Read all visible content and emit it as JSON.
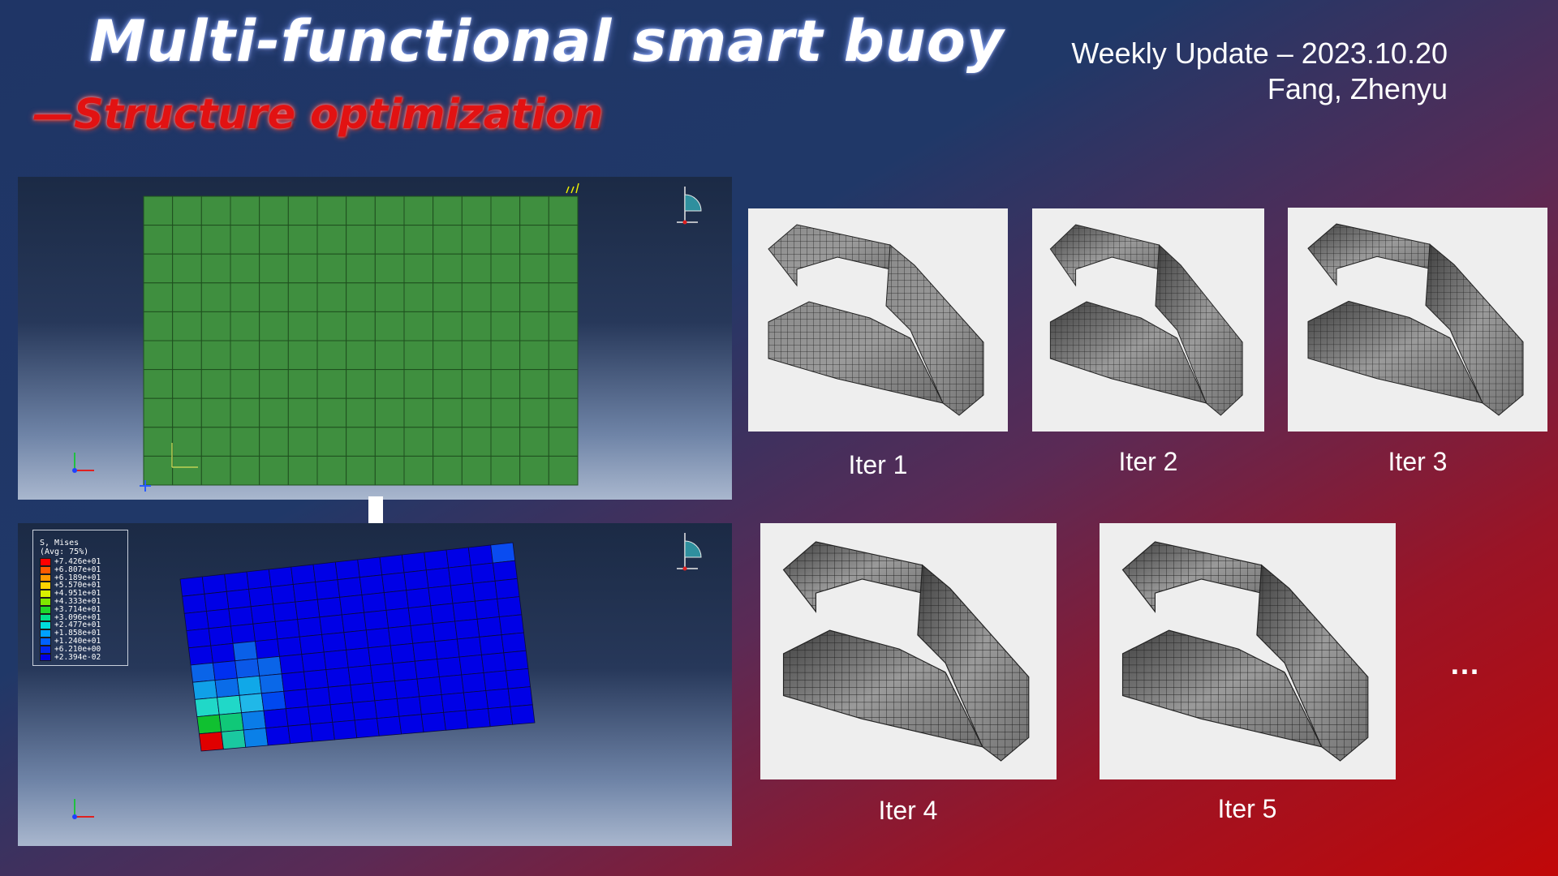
{
  "header": {
    "title": "Multi-functional smart buoy",
    "subtitle": "—Structure optimization",
    "update_line": "Weekly Update – 2023.10.20",
    "author": "Fang, Zhenyu"
  },
  "legend": {
    "title_line1": "S, Mises",
    "title_line2": "(Avg: 75%)",
    "levels": [
      "+7.426e+01",
      "+6.807e+01",
      "+6.189e+01",
      "+5.570e+01",
      "+4.951e+01",
      "+4.333e+01",
      "+3.714e+01",
      "+3.096e+01",
      "+2.477e+01",
      "+1.858e+01",
      "+1.240e+01",
      "+6.210e+00",
      "+2.394e-02"
    ],
    "colors": [
      "#ff0000",
      "#ff5a00",
      "#ff9a00",
      "#ffd400",
      "#d8f000",
      "#7ee800",
      "#1fd82c",
      "#00e08c",
      "#00dcdc",
      "#00a0ff",
      "#0062ff",
      "#0026f0",
      "#0000e6"
    ]
  },
  "iterations": [
    {
      "label": "Iter 1"
    },
    {
      "label": "Iter 2"
    },
    {
      "label": "Iter 3"
    },
    {
      "label": "Iter 4"
    },
    {
      "label": "Iter 5"
    }
  ],
  "more": "…",
  "colors": {
    "mesh_green": "#3f8f3f",
    "stress_blue": "#0000e6"
  }
}
